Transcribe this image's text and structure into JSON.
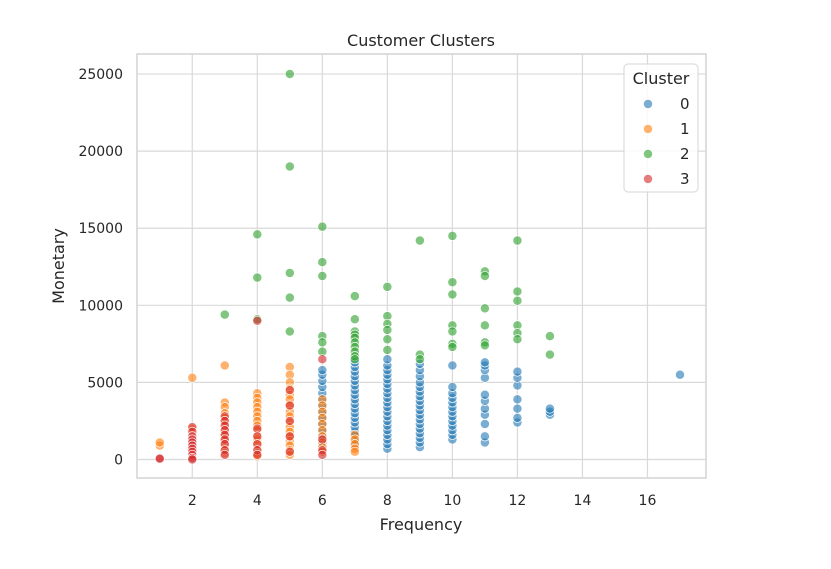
{
  "chart_data": {
    "type": "scatter",
    "title": "Customer Clusters",
    "xlabel": "Frequency",
    "ylabel": "Monetary",
    "xlim": [
      0.3,
      17.8
    ],
    "ylim": [
      -1200,
      26300
    ],
    "xticks": [
      2,
      4,
      6,
      8,
      10,
      12,
      14,
      16
    ],
    "yticks": [
      0,
      5000,
      10000,
      15000,
      20000,
      25000
    ],
    "grid": true,
    "legend": {
      "title": "Cluster",
      "placement": "top-right",
      "entries": [
        "0",
        "1",
        "2",
        "3"
      ]
    },
    "colors": {
      "0": "#1f77b4",
      "1": "#ff7f0e",
      "2": "#2ca02c",
      "3": "#d62728"
    },
    "series": [
      {
        "name": "0",
        "points": [
          [
            6,
            800
          ],
          [
            6,
            1100
          ],
          [
            6,
            1500
          ],
          [
            6,
            1900
          ],
          [
            6,
            2300
          ],
          [
            6,
            2700
          ],
          [
            6,
            3100
          ],
          [
            6,
            3500
          ],
          [
            6,
            3900
          ],
          [
            6,
            4300
          ],
          [
            6,
            4700
          ],
          [
            6,
            5100
          ],
          [
            6,
            5500
          ],
          [
            6,
            5800
          ],
          [
            7,
            900
          ],
          [
            7,
            1200
          ],
          [
            7,
            1500
          ],
          [
            7,
            1800
          ],
          [
            7,
            2100
          ],
          [
            7,
            2400
          ],
          [
            7,
            2700
          ],
          [
            7,
            3000
          ],
          [
            7,
            3300
          ],
          [
            7,
            3600
          ],
          [
            7,
            3900
          ],
          [
            7,
            4200
          ],
          [
            7,
            4500
          ],
          [
            7,
            4800
          ],
          [
            7,
            5100
          ],
          [
            7,
            5400
          ],
          [
            7,
            5700
          ],
          [
            7,
            6000
          ],
          [
            7,
            6300
          ],
          [
            8,
            700
          ],
          [
            8,
            1000
          ],
          [
            8,
            1300
          ],
          [
            8,
            1600
          ],
          [
            8,
            1900
          ],
          [
            8,
            2200
          ],
          [
            8,
            2500
          ],
          [
            8,
            2800
          ],
          [
            8,
            3100
          ],
          [
            8,
            3400
          ],
          [
            8,
            3700
          ],
          [
            8,
            4000
          ],
          [
            8,
            4300
          ],
          [
            8,
            4600
          ],
          [
            8,
            4900
          ],
          [
            8,
            5200
          ],
          [
            8,
            5500
          ],
          [
            8,
            5800
          ],
          [
            8,
            6100
          ],
          [
            8,
            6500
          ],
          [
            9,
            800
          ],
          [
            9,
            1100
          ],
          [
            9,
            1400
          ],
          [
            9,
            1700
          ],
          [
            9,
            2000
          ],
          [
            9,
            2300
          ],
          [
            9,
            2600
          ],
          [
            9,
            2900
          ],
          [
            9,
            3200
          ],
          [
            9,
            3500
          ],
          [
            9,
            3800
          ],
          [
            9,
            4100
          ],
          [
            9,
            4400
          ],
          [
            9,
            4700
          ],
          [
            9,
            5000
          ],
          [
            9,
            5400
          ],
          [
            9,
            5800
          ],
          [
            9,
            6200
          ],
          [
            10,
            1300
          ],
          [
            10,
            1600
          ],
          [
            10,
            1900
          ],
          [
            10,
            2200
          ],
          [
            10,
            2500
          ],
          [
            10,
            2800
          ],
          [
            10,
            3100
          ],
          [
            10,
            3400
          ],
          [
            10,
            3700
          ],
          [
            10,
            4000
          ],
          [
            10,
            4300
          ],
          [
            10,
            4700
          ],
          [
            10,
            6100
          ],
          [
            11,
            1100
          ],
          [
            11,
            1500
          ],
          [
            11,
            2300
          ],
          [
            11,
            2900
          ],
          [
            11,
            3300
          ],
          [
            11,
            3800
          ],
          [
            11,
            4200
          ],
          [
            11,
            5300
          ],
          [
            11,
            5800
          ],
          [
            11,
            6100
          ],
          [
            11,
            6300
          ],
          [
            12,
            2400
          ],
          [
            12,
            2700
          ],
          [
            12,
            3300
          ],
          [
            12,
            3900
          ],
          [
            12,
            4800
          ],
          [
            12,
            5300
          ],
          [
            12,
            5700
          ],
          [
            13,
            2900
          ],
          [
            13,
            3100
          ],
          [
            13,
            3300
          ],
          [
            17,
            5500
          ]
        ]
      },
      {
        "name": "1",
        "points": [
          [
            1,
            900
          ],
          [
            1,
            1100
          ],
          [
            2,
            5300
          ],
          [
            2,
            2000
          ],
          [
            3,
            6100
          ],
          [
            3,
            3700
          ],
          [
            3,
            3400
          ],
          [
            3,
            3000
          ],
          [
            3,
            2700
          ],
          [
            3,
            2500
          ],
          [
            3,
            2300
          ],
          [
            3,
            2000
          ],
          [
            3,
            1700
          ],
          [
            3,
            1500
          ],
          [
            3,
            1200
          ],
          [
            3,
            900
          ],
          [
            3,
            700
          ],
          [
            3,
            400
          ],
          [
            4,
            4300
          ],
          [
            4,
            4000
          ],
          [
            4,
            3700
          ],
          [
            4,
            3400
          ],
          [
            4,
            3100
          ],
          [
            4,
            2800
          ],
          [
            4,
            2500
          ],
          [
            4,
            2200
          ],
          [
            4,
            1900
          ],
          [
            4,
            1600
          ],
          [
            4,
            1300
          ],
          [
            4,
            1000
          ],
          [
            4,
            700
          ],
          [
            4,
            400
          ],
          [
            4,
            200
          ],
          [
            5,
            6000
          ],
          [
            5,
            5500
          ],
          [
            5,
            5000
          ],
          [
            5,
            4600
          ],
          [
            5,
            4200
          ],
          [
            5,
            3900
          ],
          [
            5,
            3500
          ],
          [
            5,
            3100
          ],
          [
            5,
            2800
          ],
          [
            5,
            2400
          ],
          [
            5,
            2100
          ],
          [
            5,
            1800
          ],
          [
            5,
            1500
          ],
          [
            5,
            1200
          ],
          [
            5,
            900
          ],
          [
            5,
            600
          ],
          [
            5,
            300
          ],
          [
            6,
            3900
          ],
          [
            6,
            3500
          ],
          [
            6,
            3100
          ],
          [
            6,
            2700
          ],
          [
            6,
            2300
          ],
          [
            6,
            1900
          ],
          [
            6,
            1500
          ],
          [
            6,
            1100
          ],
          [
            6,
            800
          ],
          [
            6,
            500
          ],
          [
            7,
            1600
          ],
          [
            7,
            1300
          ],
          [
            7,
            1000
          ],
          [
            7,
            700
          ],
          [
            7,
            500
          ]
        ]
      },
      {
        "name": "2",
        "points": [
          [
            3,
            9400
          ],
          [
            4,
            14600
          ],
          [
            4,
            11800
          ],
          [
            4,
            9100
          ],
          [
            5,
            25000
          ],
          [
            5,
            19000
          ],
          [
            5,
            12100
          ],
          [
            5,
            10500
          ],
          [
            5,
            8300
          ],
          [
            6,
            15100
          ],
          [
            6,
            12800
          ],
          [
            6,
            11900
          ],
          [
            6,
            8000
          ],
          [
            6,
            7600
          ],
          [
            6,
            7000
          ],
          [
            7,
            10600
          ],
          [
            7,
            9100
          ],
          [
            7,
            8300
          ],
          [
            7,
            8100
          ],
          [
            7,
            7900
          ],
          [
            7,
            7600
          ],
          [
            7,
            7300
          ],
          [
            7,
            7000
          ],
          [
            7,
            6700
          ],
          [
            7,
            6500
          ],
          [
            8,
            11200
          ],
          [
            8,
            9300
          ],
          [
            8,
            8800
          ],
          [
            8,
            8400
          ],
          [
            8,
            7800
          ],
          [
            8,
            7100
          ],
          [
            9,
            14200
          ],
          [
            9,
            6800
          ],
          [
            9,
            6500
          ],
          [
            10,
            14500
          ],
          [
            10,
            11500
          ],
          [
            10,
            10700
          ],
          [
            10,
            8700
          ],
          [
            10,
            8300
          ],
          [
            10,
            7500
          ],
          [
            10,
            7300
          ],
          [
            11,
            12200
          ],
          [
            11,
            11900
          ],
          [
            11,
            9800
          ],
          [
            11,
            8700
          ],
          [
            11,
            7600
          ],
          [
            11,
            7400
          ],
          [
            12,
            14200
          ],
          [
            12,
            10900
          ],
          [
            12,
            10300
          ],
          [
            12,
            8700
          ],
          [
            12,
            8200
          ],
          [
            12,
            7800
          ],
          [
            13,
            8000
          ],
          [
            13,
            6800
          ]
        ]
      },
      {
        "name": "3",
        "points": [
          [
            1,
            100
          ],
          [
            1,
            50
          ],
          [
            2,
            2100
          ],
          [
            2,
            1800
          ],
          [
            2,
            1500
          ],
          [
            2,
            1300
          ],
          [
            2,
            1100
          ],
          [
            2,
            900
          ],
          [
            2,
            700
          ],
          [
            2,
            500
          ],
          [
            2,
            300
          ],
          [
            2,
            100
          ],
          [
            2,
            0
          ],
          [
            3,
            2800
          ],
          [
            3,
            2500
          ],
          [
            3,
            2200
          ],
          [
            3,
            1900
          ],
          [
            3,
            1600
          ],
          [
            3,
            1300
          ],
          [
            3,
            1000
          ],
          [
            3,
            600
          ],
          [
            3,
            300
          ],
          [
            4,
            9000
          ],
          [
            4,
            2000
          ],
          [
            4,
            1500
          ],
          [
            4,
            1000
          ],
          [
            4,
            600
          ],
          [
            4,
            300
          ],
          [
            5,
            4500
          ],
          [
            5,
            3500
          ],
          [
            5,
            2500
          ],
          [
            5,
            1500
          ],
          [
            5,
            500
          ],
          [
            6,
            6500
          ],
          [
            6,
            1300
          ],
          [
            6,
            600
          ],
          [
            6,
            300
          ]
        ]
      }
    ]
  }
}
